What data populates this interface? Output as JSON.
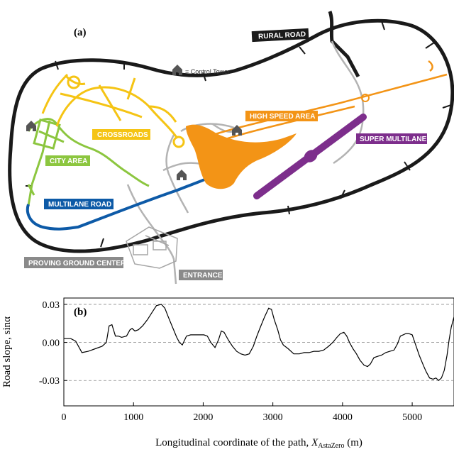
{
  "map": {
    "panel_label": "(a)",
    "legend_text": "= Control Tower",
    "areas": {
      "rural_road": "RURAL ROAD",
      "crossroads": "CROSSROADS",
      "city_area": "CITY AREA",
      "multilane_road": "MULTILANE ROAD",
      "high_speed_area": "HIGH SPEED AREA",
      "super_multilane": "SUPER MULTILANE",
      "proving_ground_center": "PROVING GROUND CENTER",
      "entrance": "ENTRANCE"
    },
    "colors": {
      "rural_road": "#1a1a1a",
      "crossroads": "#f5c414",
      "city_area": "#8cc63f",
      "multilane_road": "#0d5aa7",
      "high_speed_area": "#f39416",
      "super_multilane": "#7d2e8c",
      "proving_ground_center": "#8a8a8a",
      "entrance": "#8a8a8a",
      "service_road": "#b3b3b3"
    }
  },
  "chart_data": {
    "type": "line",
    "panel_label": "(b)",
    "xlabel_prefix": "Longitudinal coordinate of the path, ",
    "xlabel_var": "X",
    "xlabel_sub": "AstaZero",
    "xlabel_suffix": " (m)",
    "ylabel": "Road slope, sinα",
    "xlim": [
      0,
      5600
    ],
    "ylim": [
      -0.05,
      0.035
    ],
    "xticks": [
      0,
      1000,
      2000,
      3000,
      4000,
      5000
    ],
    "yticks": [
      0.03,
      0.0,
      -0.03
    ],
    "ytick_labels": [
      "0.03",
      "0.00",
      "-0.03"
    ],
    "grid_y": true,
    "series": [
      {
        "x": [
          0,
          100,
          170,
          260,
          350,
          450,
          550,
          610,
          650,
          690,
          740,
          780,
          830,
          900,
          950,
          980,
          1020,
          1070,
          1130,
          1200,
          1270,
          1330,
          1400,
          1450,
          1500,
          1560,
          1620,
          1660,
          1700,
          1760,
          1820,
          1880,
          1950,
          2010,
          2060,
          2110,
          2170,
          2220,
          2260,
          2300,
          2360,
          2420,
          2480,
          2540,
          2600,
          2660,
          2720,
          2770,
          2820,
          2880,
          2940,
          2980,
          3020,
          3070,
          3110,
          3150,
          3220,
          3300,
          3380,
          3450,
          3520,
          3590,
          3660,
          3730,
          3800,
          3860,
          3920,
          3970,
          4020,
          4060,
          4100,
          4150,
          4200,
          4250,
          4310,
          4360,
          4400,
          4450,
          4500,
          4560,
          4620,
          4680,
          4740,
          4790,
          4830,
          4870,
          4910,
          4950,
          5000,
          5050,
          5100,
          5160,
          5200,
          5250,
          5300,
          5340,
          5380,
          5420,
          5460,
          5500,
          5530,
          5560,
          5600
        ],
        "y": [
          0.003,
          0.003,
          0.001,
          -0.008,
          -0.007,
          -0.005,
          -0.003,
          0.0,
          0.013,
          0.014,
          0.005,
          0.005,
          0.004,
          0.005,
          0.01,
          0.011,
          0.009,
          0.01,
          0.013,
          0.018,
          0.024,
          0.029,
          0.03,
          0.027,
          0.02,
          0.012,
          0.004,
          0.0,
          -0.002,
          0.005,
          0.006,
          0.006,
          0.006,
          0.006,
          0.005,
          0.0,
          -0.004,
          0.002,
          0.009,
          0.008,
          0.002,
          -0.003,
          -0.007,
          -0.009,
          -0.01,
          -0.009,
          -0.003,
          0.005,
          0.012,
          0.02,
          0.027,
          0.026,
          0.018,
          0.01,
          0.002,
          -0.002,
          -0.005,
          -0.009,
          -0.009,
          -0.008,
          -0.008,
          -0.007,
          -0.007,
          -0.006,
          -0.003,
          0.0,
          0.004,
          0.007,
          0.008,
          0.005,
          0.0,
          -0.005,
          -0.009,
          -0.014,
          -0.018,
          -0.019,
          -0.017,
          -0.012,
          -0.011,
          -0.01,
          -0.008,
          -0.007,
          -0.006,
          -0.001,
          0.005,
          0.006,
          0.007,
          0.007,
          0.006,
          -0.002,
          -0.01,
          -0.018,
          -0.023,
          -0.028,
          -0.029,
          -0.028,
          -0.03,
          -0.028,
          -0.022,
          -0.01,
          0.002,
          0.012,
          0.02
        ]
      }
    ]
  }
}
